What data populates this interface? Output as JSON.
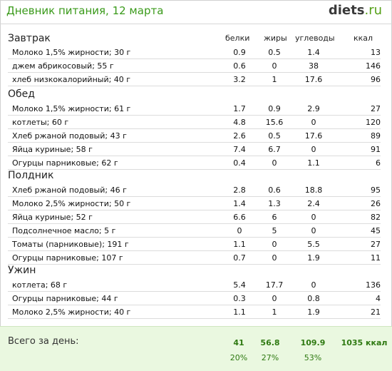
{
  "header": {
    "title": "Дневник питания, 12 марта",
    "logo_part1": "diets",
    "logo_part2": ".ru"
  },
  "columns": [
    "белки",
    "жиры",
    "углеводы",
    "ккал"
  ],
  "meals": [
    {
      "name": "Завтрак",
      "items": [
        {
          "name": "Молоко 1,5% жирности; 30 г",
          "protein": "0.9",
          "fat": "0.5",
          "carbs": "1.4",
          "kcal": "13"
        },
        {
          "name": "джем абрикосовый; 55 г",
          "protein": "0.6",
          "fat": "0",
          "carbs": "38",
          "kcal": "146"
        },
        {
          "name": "хлеб низкокалорийный; 40 г",
          "protein": "3.2",
          "fat": "1",
          "carbs": "17.6",
          "kcal": "96"
        }
      ]
    },
    {
      "name": "Обед",
      "items": [
        {
          "name": "Молоко 1,5% жирности; 61 г",
          "protein": "1.7",
          "fat": "0.9",
          "carbs": "2.9",
          "kcal": "27"
        },
        {
          "name": "котлеты; 60 г",
          "protein": "4.8",
          "fat": "15.6",
          "carbs": "0",
          "kcal": "120"
        },
        {
          "name": "Хлеб ржаной подовый; 43 г",
          "protein": "2.6",
          "fat": "0.5",
          "carbs": "17.6",
          "kcal": "89"
        },
        {
          "name": "Яйца куриные; 58 г",
          "protein": "7.4",
          "fat": "6.7",
          "carbs": "0",
          "kcal": "91"
        },
        {
          "name": "Огурцы парниковые; 62 г",
          "protein": "0.4",
          "fat": "0",
          "carbs": "1.1",
          "kcal": "6"
        }
      ]
    },
    {
      "name": "Полдник",
      "items": [
        {
          "name": "Хлеб ржаной подовый; 46 г",
          "protein": "2.8",
          "fat": "0.6",
          "carbs": "18.8",
          "kcal": "95"
        },
        {
          "name": "Молоко 2,5% жирности; 50 г",
          "protein": "1.4",
          "fat": "1.3",
          "carbs": "2.4",
          "kcal": "26"
        },
        {
          "name": "Яйца куриные; 52 г",
          "protein": "6.6",
          "fat": "6",
          "carbs": "0",
          "kcal": "82"
        },
        {
          "name": "Подсолнечное масло; 5 г",
          "protein": "0",
          "fat": "5",
          "carbs": "0",
          "kcal": "45"
        },
        {
          "name": "Томаты (парниковые); 191 г",
          "protein": "1.1",
          "fat": "0",
          "carbs": "5.5",
          "kcal": "27"
        },
        {
          "name": "Огурцы парниковые; 107 г",
          "protein": "0.7",
          "fat": "0",
          "carbs": "1.9",
          "kcal": "11"
        }
      ]
    },
    {
      "name": "Ужин",
      "items": [
        {
          "name": "котлета; 68 г",
          "protein": "5.4",
          "fat": "17.7",
          "carbs": "0",
          "kcal": "136"
        },
        {
          "name": "Огурцы парниковые; 44 г",
          "protein": "0.3",
          "fat": "0",
          "carbs": "0.8",
          "kcal": "4"
        },
        {
          "name": "Молоко 2,5% жирности; 40 г",
          "protein": "1.1",
          "fat": "1",
          "carbs": "1.9",
          "kcal": "21"
        }
      ]
    }
  ],
  "totals": {
    "label": "Всего за день:",
    "protein": "41",
    "fat": "56.8",
    "carbs": "109.9",
    "kcal": "1035 ккал",
    "protein_pct": "20%",
    "fat_pct": "27%",
    "carbs_pct": "53%"
  }
}
